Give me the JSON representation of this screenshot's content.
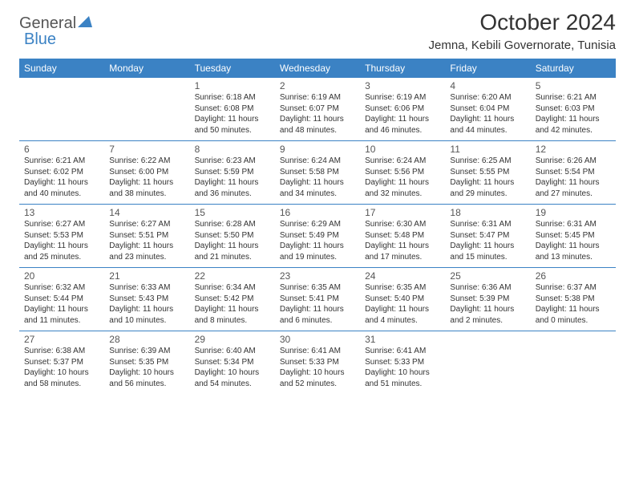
{
  "brand": {
    "part1": "General",
    "part2": "Blue"
  },
  "title": "October 2024",
  "location": "Jemna, Kebili Governorate, Tunisia",
  "colors": {
    "header_bg": "#3b82c4",
    "header_text": "#ffffff",
    "border": "#3b82c4",
    "brand_gray": "#555555",
    "brand_blue": "#3b82c4",
    "body_text": "#333333",
    "background": "#ffffff"
  },
  "typography": {
    "title_fontsize": 28,
    "location_fontsize": 15,
    "weekday_fontsize": 12,
    "daynum_fontsize": 12,
    "detail_fontsize": 10
  },
  "weekdays": [
    "Sunday",
    "Monday",
    "Tuesday",
    "Wednesday",
    "Thursday",
    "Friday",
    "Saturday"
  ],
  "weeks": [
    [
      null,
      null,
      {
        "n": "1",
        "sr": "Sunrise: 6:18 AM",
        "ss": "Sunset: 6:08 PM",
        "d1": "Daylight: 11 hours",
        "d2": "and 50 minutes."
      },
      {
        "n": "2",
        "sr": "Sunrise: 6:19 AM",
        "ss": "Sunset: 6:07 PM",
        "d1": "Daylight: 11 hours",
        "d2": "and 48 minutes."
      },
      {
        "n": "3",
        "sr": "Sunrise: 6:19 AM",
        "ss": "Sunset: 6:06 PM",
        "d1": "Daylight: 11 hours",
        "d2": "and 46 minutes."
      },
      {
        "n": "4",
        "sr": "Sunrise: 6:20 AM",
        "ss": "Sunset: 6:04 PM",
        "d1": "Daylight: 11 hours",
        "d2": "and 44 minutes."
      },
      {
        "n": "5",
        "sr": "Sunrise: 6:21 AM",
        "ss": "Sunset: 6:03 PM",
        "d1": "Daylight: 11 hours",
        "d2": "and 42 minutes."
      }
    ],
    [
      {
        "n": "6",
        "sr": "Sunrise: 6:21 AM",
        "ss": "Sunset: 6:02 PM",
        "d1": "Daylight: 11 hours",
        "d2": "and 40 minutes."
      },
      {
        "n": "7",
        "sr": "Sunrise: 6:22 AM",
        "ss": "Sunset: 6:00 PM",
        "d1": "Daylight: 11 hours",
        "d2": "and 38 minutes."
      },
      {
        "n": "8",
        "sr": "Sunrise: 6:23 AM",
        "ss": "Sunset: 5:59 PM",
        "d1": "Daylight: 11 hours",
        "d2": "and 36 minutes."
      },
      {
        "n": "9",
        "sr": "Sunrise: 6:24 AM",
        "ss": "Sunset: 5:58 PM",
        "d1": "Daylight: 11 hours",
        "d2": "and 34 minutes."
      },
      {
        "n": "10",
        "sr": "Sunrise: 6:24 AM",
        "ss": "Sunset: 5:56 PM",
        "d1": "Daylight: 11 hours",
        "d2": "and 32 minutes."
      },
      {
        "n": "11",
        "sr": "Sunrise: 6:25 AM",
        "ss": "Sunset: 5:55 PM",
        "d1": "Daylight: 11 hours",
        "d2": "and 29 minutes."
      },
      {
        "n": "12",
        "sr": "Sunrise: 6:26 AM",
        "ss": "Sunset: 5:54 PM",
        "d1": "Daylight: 11 hours",
        "d2": "and 27 minutes."
      }
    ],
    [
      {
        "n": "13",
        "sr": "Sunrise: 6:27 AM",
        "ss": "Sunset: 5:53 PM",
        "d1": "Daylight: 11 hours",
        "d2": "and 25 minutes."
      },
      {
        "n": "14",
        "sr": "Sunrise: 6:27 AM",
        "ss": "Sunset: 5:51 PM",
        "d1": "Daylight: 11 hours",
        "d2": "and 23 minutes."
      },
      {
        "n": "15",
        "sr": "Sunrise: 6:28 AM",
        "ss": "Sunset: 5:50 PM",
        "d1": "Daylight: 11 hours",
        "d2": "and 21 minutes."
      },
      {
        "n": "16",
        "sr": "Sunrise: 6:29 AM",
        "ss": "Sunset: 5:49 PM",
        "d1": "Daylight: 11 hours",
        "d2": "and 19 minutes."
      },
      {
        "n": "17",
        "sr": "Sunrise: 6:30 AM",
        "ss": "Sunset: 5:48 PM",
        "d1": "Daylight: 11 hours",
        "d2": "and 17 minutes."
      },
      {
        "n": "18",
        "sr": "Sunrise: 6:31 AM",
        "ss": "Sunset: 5:47 PM",
        "d1": "Daylight: 11 hours",
        "d2": "and 15 minutes."
      },
      {
        "n": "19",
        "sr": "Sunrise: 6:31 AM",
        "ss": "Sunset: 5:45 PM",
        "d1": "Daylight: 11 hours",
        "d2": "and 13 minutes."
      }
    ],
    [
      {
        "n": "20",
        "sr": "Sunrise: 6:32 AM",
        "ss": "Sunset: 5:44 PM",
        "d1": "Daylight: 11 hours",
        "d2": "and 11 minutes."
      },
      {
        "n": "21",
        "sr": "Sunrise: 6:33 AM",
        "ss": "Sunset: 5:43 PM",
        "d1": "Daylight: 11 hours",
        "d2": "and 10 minutes."
      },
      {
        "n": "22",
        "sr": "Sunrise: 6:34 AM",
        "ss": "Sunset: 5:42 PM",
        "d1": "Daylight: 11 hours",
        "d2": "and 8 minutes."
      },
      {
        "n": "23",
        "sr": "Sunrise: 6:35 AM",
        "ss": "Sunset: 5:41 PM",
        "d1": "Daylight: 11 hours",
        "d2": "and 6 minutes."
      },
      {
        "n": "24",
        "sr": "Sunrise: 6:35 AM",
        "ss": "Sunset: 5:40 PM",
        "d1": "Daylight: 11 hours",
        "d2": "and 4 minutes."
      },
      {
        "n": "25",
        "sr": "Sunrise: 6:36 AM",
        "ss": "Sunset: 5:39 PM",
        "d1": "Daylight: 11 hours",
        "d2": "and 2 minutes."
      },
      {
        "n": "26",
        "sr": "Sunrise: 6:37 AM",
        "ss": "Sunset: 5:38 PM",
        "d1": "Daylight: 11 hours",
        "d2": "and 0 minutes."
      }
    ],
    [
      {
        "n": "27",
        "sr": "Sunrise: 6:38 AM",
        "ss": "Sunset: 5:37 PM",
        "d1": "Daylight: 10 hours",
        "d2": "and 58 minutes."
      },
      {
        "n": "28",
        "sr": "Sunrise: 6:39 AM",
        "ss": "Sunset: 5:35 PM",
        "d1": "Daylight: 10 hours",
        "d2": "and 56 minutes."
      },
      {
        "n": "29",
        "sr": "Sunrise: 6:40 AM",
        "ss": "Sunset: 5:34 PM",
        "d1": "Daylight: 10 hours",
        "d2": "and 54 minutes."
      },
      {
        "n": "30",
        "sr": "Sunrise: 6:41 AM",
        "ss": "Sunset: 5:33 PM",
        "d1": "Daylight: 10 hours",
        "d2": "and 52 minutes."
      },
      {
        "n": "31",
        "sr": "Sunrise: 6:41 AM",
        "ss": "Sunset: 5:33 PM",
        "d1": "Daylight: 10 hours",
        "d2": "and 51 minutes."
      },
      null,
      null
    ]
  ]
}
